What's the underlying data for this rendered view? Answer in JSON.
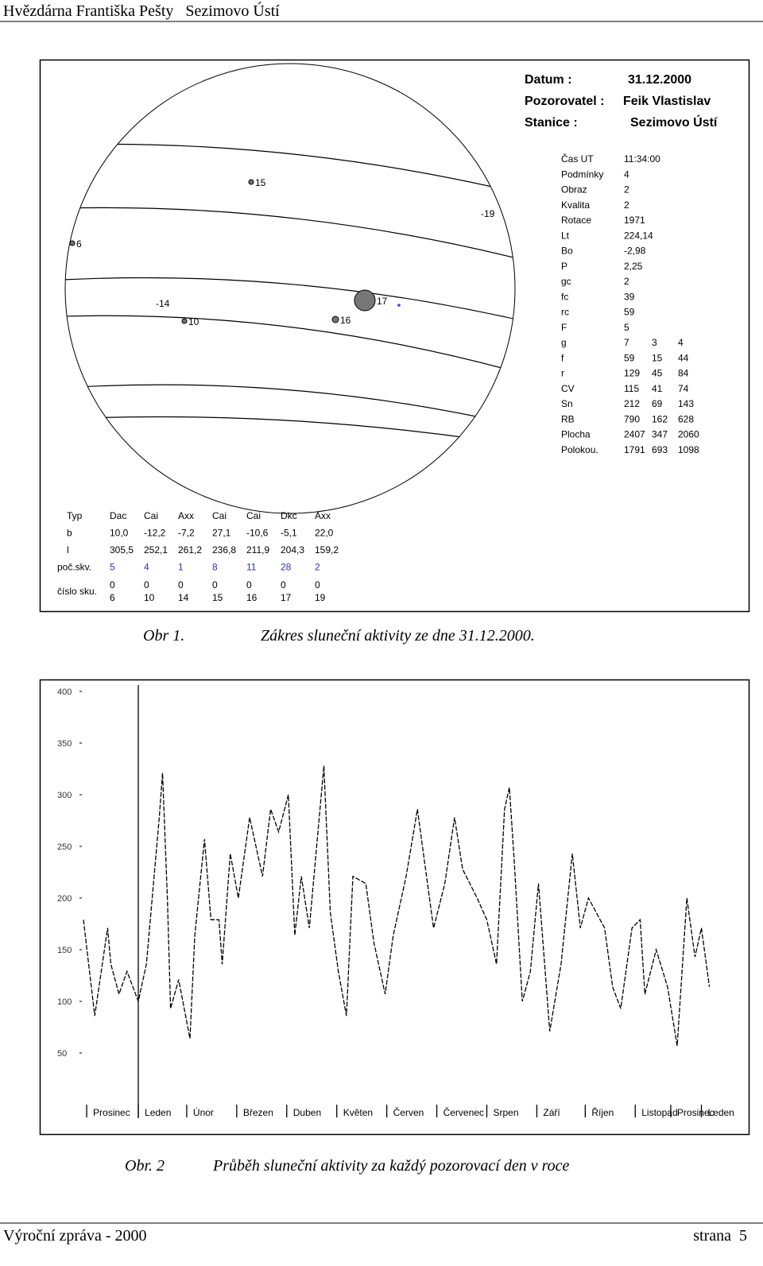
{
  "header": {
    "title": "Hvězdárna Františka Pešty   Sezimovo Ústí"
  },
  "figure1": {
    "meta": [
      [
        "Datum :",
        "31.12.2000"
      ],
      [
        "Pozorovatel :",
        "Feik Vlastislav"
      ],
      [
        "Stanice :",
        "Sezimovo Ústí"
      ]
    ],
    "spots": [
      "15",
      "6",
      "-19",
      "-14",
      "10",
      "17",
      "16"
    ],
    "info": [
      [
        "Čas UT",
        "11:34:00"
      ],
      [
        "Podmínky",
        "4"
      ],
      [
        "Obraz",
        "2"
      ],
      [
        "Kvalita",
        "2"
      ],
      [
        "Rotace",
        "1971"
      ],
      [
        "Lt",
        "224,14"
      ],
      [
        "Bo",
        "-2,98"
      ],
      [
        "P",
        "2,25"
      ],
      [
        "gc",
        "2"
      ],
      [
        "fc",
        "39"
      ],
      [
        "rc",
        "59"
      ],
      [
        "F",
        "5"
      ],
      [
        "g",
        "7",
        "3",
        "4"
      ],
      [
        "f",
        "59",
        "15",
        "44"
      ],
      [
        "r",
        "129",
        "45",
        "84"
      ],
      [
        "CV",
        "115",
        "41",
        "74"
      ],
      [
        "Sn",
        "212",
        "69",
        "143"
      ],
      [
        "RB",
        "790",
        "162",
        "628"
      ],
      [
        "Plocha",
        "2407",
        "347",
        "2060"
      ],
      [
        "Polokou.",
        "1791",
        "693",
        "1098"
      ]
    ],
    "table": {
      "rows": [
        [
          "Typ",
          "Dac",
          "Cai",
          "Axx",
          "Cai",
          "Cai",
          "Dkc",
          "Axx"
        ],
        [
          "b",
          "10,0",
          "-12,2",
          "-7,2",
          "27,1",
          "-10,6",
          "-5,1",
          "22,0"
        ],
        [
          "l",
          "305,5",
          "252,1",
          "261,2",
          "236,8",
          "211,9",
          "204,3",
          "159,2"
        ],
        [
          "poč.skv.",
          "5",
          "4",
          "1",
          "8",
          "11",
          "28",
          "2"
        ]
      ],
      "group_label": "číslo sku.",
      "group_rows": [
        [
          "0",
          "0",
          "0",
          "0",
          "0",
          "0",
          "0"
        ],
        [
          "6",
          "10",
          "14",
          "15",
          "16",
          "17",
          "19"
        ]
      ]
    }
  },
  "caption1": {
    "number": "Obr 1.",
    "text": "Zákres sluneční aktivity ze dne 31.12.2000."
  },
  "chart_data": {
    "type": "line",
    "x": [
      0,
      7,
      15,
      17,
      22,
      27,
      34,
      39,
      47,
      49,
      52,
      54,
      59,
      66,
      69,
      75,
      79,
      84,
      86,
      91,
      96,
      103,
      111,
      116,
      121,
      127,
      131,
      135,
      140,
      149,
      153,
      158,
      163,
      167,
      175,
      180,
      187,
      192,
      200,
      207,
      212,
      217,
      224,
      230,
      235,
      244,
      250,
      256,
      261,
      264,
      267,
      272,
      277,
      282,
      289,
      296,
      303,
      308,
      313,
      323,
      328,
      333,
      340,
      345,
      348,
      355,
      362,
      368,
      374,
      379,
      383,
      388
    ],
    "series": [
      {
        "color": "#000000",
        "values": [
          179,
          86,
          171,
          136,
          107,
          129,
          100,
          136,
          278,
          321,
          200,
          93,
          121,
          64,
          164,
          257,
          179,
          179,
          136,
          243,
          200,
          278,
          221,
          286,
          264,
          300,
          164,
          221,
          171,
          328,
          186,
          129,
          86,
          221,
          214,
          157,
          107,
          164,
          221,
          286,
          228,
          171,
          214,
          278,
          228,
          200,
          179,
          136,
          286,
          307,
          236,
          100,
          129,
          214,
          71,
          136,
          243,
          171,
          200,
          171,
          114,
          93,
          171,
          179,
          107,
          150,
          114,
          57,
          200,
          143,
          171,
          114
        ]
      }
    ],
    "xlim": [
      0,
      400
    ],
    "ylim": [
      0,
      400
    ],
    "xticks": [
      {
        "value": 2,
        "label": "Prosinec"
      },
      {
        "value": 34,
        "label": "Leden"
      },
      {
        "value": 64,
        "label": "Únor"
      },
      {
        "value": 95,
        "label": "Březen"
      },
      {
        "value": 126,
        "label": "Duben"
      },
      {
        "value": 157,
        "label": "Květen"
      },
      {
        "value": 188,
        "label": "Červen"
      },
      {
        "value": 219,
        "label": "Červenec"
      },
      {
        "value": 250,
        "label": "Srpen"
      },
      {
        "value": 281,
        "label": "Září"
      },
      {
        "value": 311,
        "label": "Říjen"
      },
      {
        "value": 342,
        "label": "Listopad"
      },
      {
        "value": 364,
        "label": "Prosinec"
      },
      {
        "value": 383,
        "label": "Leden"
      }
    ],
    "yticks": [
      50,
      100,
      150,
      200,
      250,
      300,
      350,
      400
    ]
  },
  "caption2": {
    "number": "Obr. 2",
    "text": "Průběh sluneční aktivity za každý pozorovací den v roce"
  },
  "footer": {
    "left": "Výroční zpráva - 2000",
    "right": "strana  5"
  }
}
